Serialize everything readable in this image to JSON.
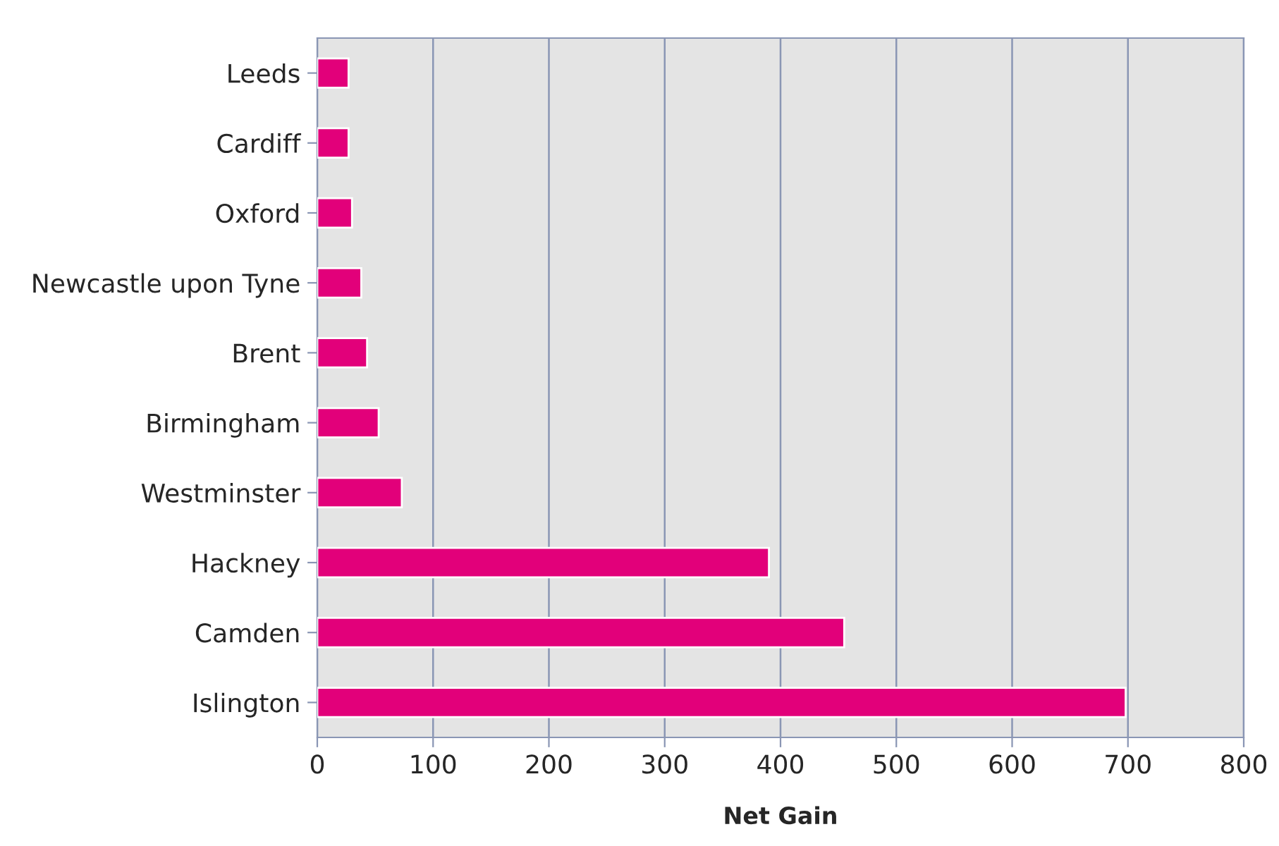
{
  "chart_data": {
    "type": "bar",
    "orientation": "horizontal",
    "xlabel": "Net Gain",
    "categories": [
      "Leeds",
      "Cardiff",
      "Oxford",
      "Newcastle upon Tyne",
      "Brent",
      "Birmingham",
      "Westminster",
      "Hackney",
      "Camden",
      "Islington"
    ],
    "values": [
      27,
      27,
      30,
      38,
      43,
      53,
      73,
      390,
      455,
      698
    ],
    "color": "#e2007a",
    "xlim": [
      0,
      800
    ],
    "xticks": [
      0,
      100,
      200,
      300,
      400,
      500,
      600,
      700,
      800
    ],
    "grid": "x"
  }
}
